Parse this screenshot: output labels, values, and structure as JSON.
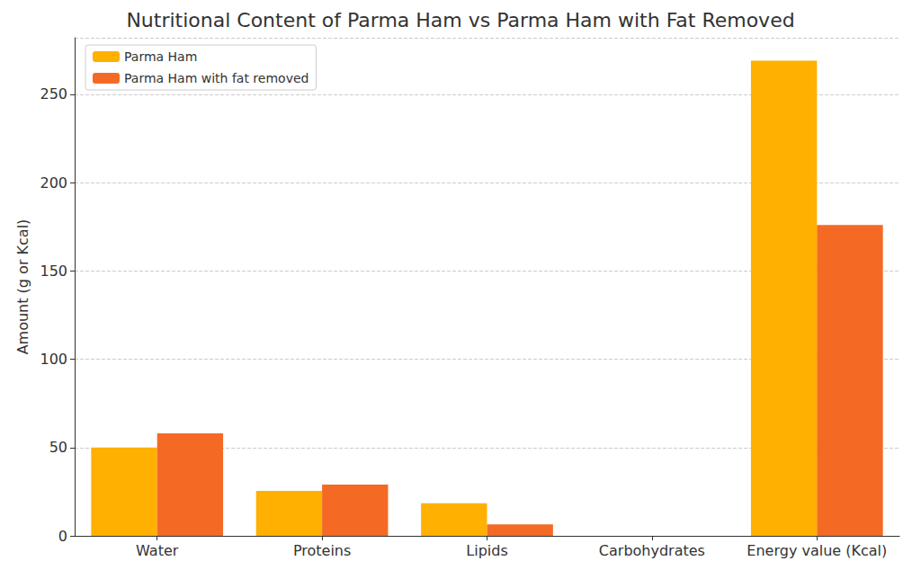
{
  "chart_data": {
    "type": "bar",
    "title": "Nutritional Content of Parma Ham vs Parma Ham with Fat Removed",
    "y_label": "Amount (g or Kcal)",
    "categories": [
      "Water",
      "Proteins",
      "Lipids",
      "Carbohydrates",
      "Energy value (Kcal)"
    ],
    "series": [
      {
        "name": "Parma Ham",
        "color": "#ffb000",
        "values": [
          50,
          25.5,
          18.5,
          0,
          269
        ]
      },
      {
        "name": "Parma Ham with fat removed",
        "color": "#f46a25",
        "values": [
          58,
          29,
          6.5,
          0,
          176
        ]
      }
    ],
    "ylim": [
      0,
      282
    ],
    "yticks": [
      0,
      50,
      100,
      150,
      200,
      250
    ],
    "grid": true,
    "legend": "upper left"
  }
}
